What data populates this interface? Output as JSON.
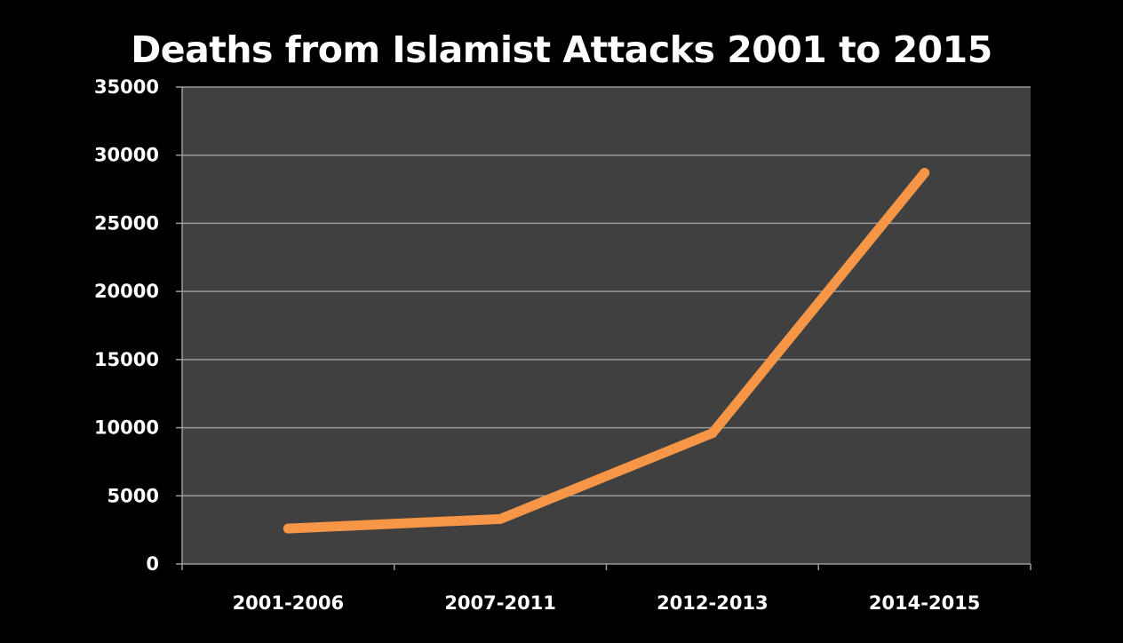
{
  "chart_data": {
    "type": "line",
    "title": "Deaths from Islamist Attacks 2001 to 2015",
    "xlabel": "",
    "ylabel": "",
    "categories": [
      "2001-2006",
      "2007-2011",
      "2012-2013",
      "2014-2015"
    ],
    "series": [
      {
        "values": [
          2600,
          3300,
          9600,
          28700
        ]
      }
    ],
    "ylim": [
      0,
      35000
    ],
    "yticks": [
      0,
      5000,
      10000,
      15000,
      20000,
      25000,
      30000,
      35000
    ],
    "grid": true,
    "legend": "none",
    "colors": {
      "background": "#000000",
      "plot_area": "#404040",
      "gridline": "#9a9a9a",
      "line": "#f79646",
      "text": "#ffffff"
    }
  }
}
